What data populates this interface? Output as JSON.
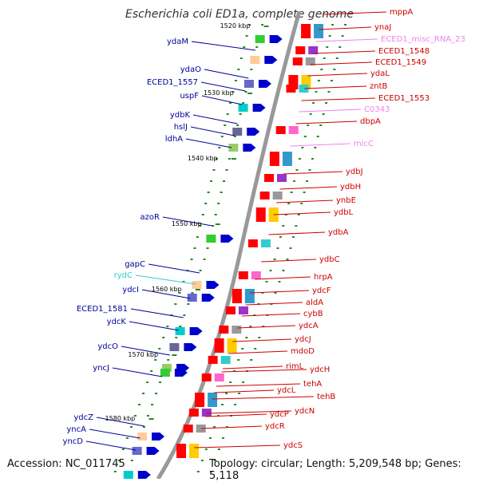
{
  "title": "Escherichia coli ED1a, complete genome",
  "footer": {
    "accession": "Accession: NC_011745",
    "summary": "Topology: circular; Length: 5,209,548 bp; Genes: 5,118"
  },
  "colors": {
    "forward": "#ff0000",
    "reverse": "#0000cc",
    "rna": "#ee82ee",
    "misc": "#33cccc",
    "label_forward": "#cc0000",
    "label_reverse": "#000099",
    "label_rna": "#ee82ee",
    "label_misc": "#33cccc",
    "backbone": "#999999",
    "tick": "#228b22"
  },
  "kbp_marks": [
    "1520 kbp",
    "1530 kbp",
    "1540 kbp",
    "1550 kbp",
    "1560 kbp",
    "1570 kbp",
    "1580 kbp"
  ],
  "right_labels": [
    {
      "text": "mppA",
      "kind": "forward"
    },
    {
      "text": "ynaJ",
      "kind": "forward"
    },
    {
      "text": "ECED1_misc_RNA_23",
      "kind": "rna"
    },
    {
      "text": "ECED1_1548",
      "kind": "forward"
    },
    {
      "text": "ECED1_1549",
      "kind": "forward"
    },
    {
      "text": "ydaL",
      "kind": "forward"
    },
    {
      "text": "zntB",
      "kind": "forward"
    },
    {
      "text": "ECED1_1553",
      "kind": "forward"
    },
    {
      "text": "C0343",
      "kind": "rna"
    },
    {
      "text": "dbpA",
      "kind": "forward"
    },
    {
      "text": "micC",
      "kind": "rna"
    },
    {
      "text": "ydbJ",
      "kind": "forward"
    },
    {
      "text": "ydbH",
      "kind": "forward"
    },
    {
      "text": "ynbE",
      "kind": "forward"
    },
    {
      "text": "ydbL",
      "kind": "forward"
    },
    {
      "text": "ydbA",
      "kind": "forward"
    },
    {
      "text": "ydbC",
      "kind": "forward"
    },
    {
      "text": "hrpA",
      "kind": "forward"
    },
    {
      "text": "ydcF",
      "kind": "forward"
    },
    {
      "text": "aldA",
      "kind": "forward"
    },
    {
      "text": "cybB",
      "kind": "forward"
    },
    {
      "text": "ydcA",
      "kind": "forward"
    },
    {
      "text": "ydcJ",
      "kind": "forward"
    },
    {
      "text": "mdoD",
      "kind": "forward"
    },
    {
      "text": "rimL",
      "kind": "forward"
    },
    {
      "text": "ydcH",
      "kind": "forward"
    },
    {
      "text": "tehA",
      "kind": "forward"
    },
    {
      "text": "ydcL",
      "kind": "forward"
    },
    {
      "text": "tehB",
      "kind": "forward"
    },
    {
      "text": "ydcN",
      "kind": "forward"
    },
    {
      "text": "ydcP",
      "kind": "forward"
    },
    {
      "text": "ydcR",
      "kind": "forward"
    },
    {
      "text": "ydcS",
      "kind": "forward"
    }
  ],
  "left_labels": [
    {
      "text": "ydaM",
      "kind": "reverse"
    },
    {
      "text": "ydaO",
      "kind": "reverse"
    },
    {
      "text": "ECED1_1557",
      "kind": "reverse"
    },
    {
      "text": "uspF",
      "kind": "reverse"
    },
    {
      "text": "ydbK",
      "kind": "reverse"
    },
    {
      "text": "hslJ",
      "kind": "reverse"
    },
    {
      "text": "ldhA",
      "kind": "reverse"
    },
    {
      "text": "azoR",
      "kind": "reverse"
    },
    {
      "text": "gapC",
      "kind": "reverse"
    },
    {
      "text": "rydC",
      "kind": "misc"
    },
    {
      "text": "ydcI",
      "kind": "reverse"
    },
    {
      "text": "ECED1_1581",
      "kind": "reverse"
    },
    {
      "text": "ydcK",
      "kind": "reverse"
    },
    {
      "text": "ydcO",
      "kind": "reverse"
    },
    {
      "text": "yncJ",
      "kind": "reverse"
    },
    {
      "text": "ydcZ",
      "kind": "reverse"
    },
    {
      "text": "yncA",
      "kind": "reverse"
    },
    {
      "text": "yncD",
      "kind": "reverse"
    }
  ]
}
